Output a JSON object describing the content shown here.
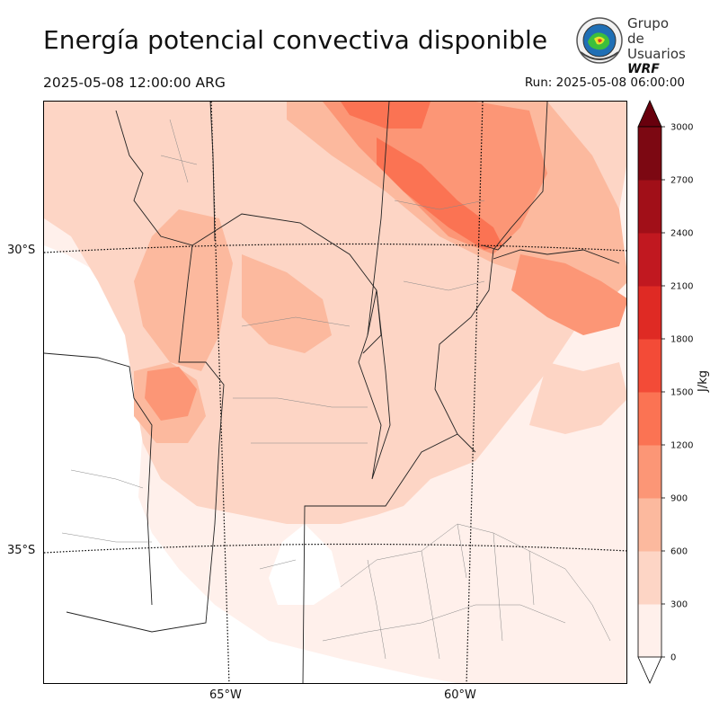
{
  "header": {
    "title": "Energía potencial convectiva disponible",
    "valid_time": "2025-05-08 12:00:00 ARG",
    "run_time": "Run: 2025-05-08 06:00:00"
  },
  "logo": {
    "line1": "Grupo de",
    "line2": "Usuarios",
    "line3": "WRF"
  },
  "map": {
    "lat_labels": [
      "30°S",
      "35°S"
    ],
    "lon_labels": [
      "65°W",
      "60°W"
    ]
  },
  "colorbar": {
    "unit": "J/kg",
    "ticks": [
      "0",
      "300",
      "600",
      "900",
      "1200",
      "1500",
      "1800",
      "2100",
      "2400",
      "2700",
      "3000"
    ],
    "colors": [
      "#fff0eb",
      "#fdd5c5",
      "#fcb99e",
      "#fc9676",
      "#fb7353",
      "#f34b37",
      "#df2a24",
      "#c11820",
      "#a10f18",
      "#7c0812"
    ],
    "over_color": "#68000d"
  }
}
